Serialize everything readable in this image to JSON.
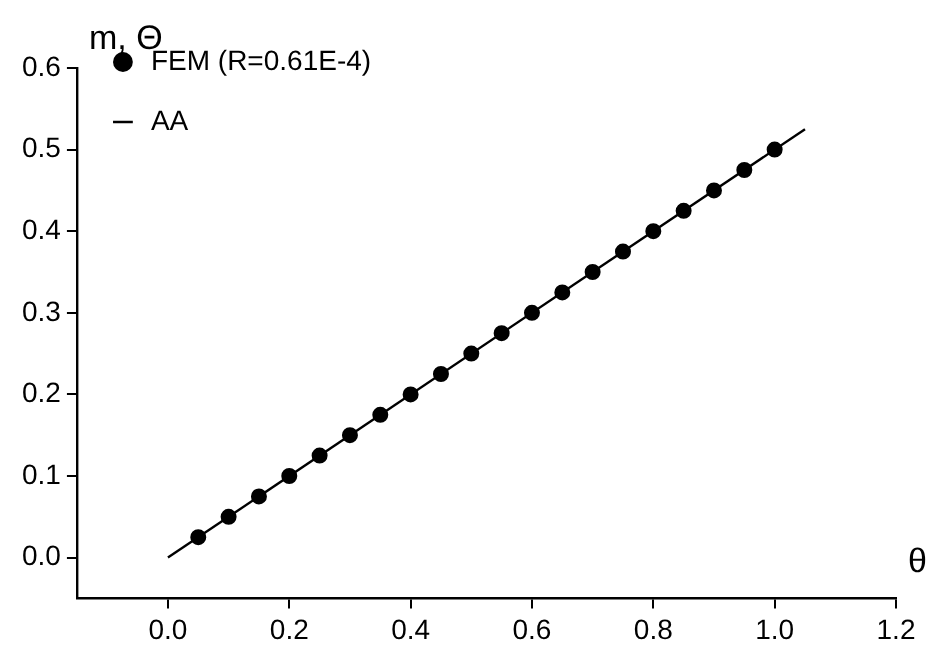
{
  "chart_data": {
    "type": "scatter",
    "xlabel": "θ",
    "ylabel": "m, Θ",
    "legend": "top left",
    "grid": false,
    "xlim": [
      -0.15,
      1.2
    ],
    "xticks": [
      {
        "value": 0,
        "label": "0.0"
      },
      0.2,
      0.4,
      0.6,
      0.8,
      {
        "value": 1,
        "label": "1.0"
      },
      1.2
    ],
    "ylim": [
      -0.05,
      0.6
    ],
    "yticks": [
      {
        "value": 0,
        "label": "0.0"
      },
      0.1,
      0.2,
      0.3,
      0.4,
      0.5,
      0.6
    ],
    "series": [
      {
        "name": "FEM (R=0.61E-4)",
        "type": "scatter",
        "marker": "circle",
        "color": "#000000",
        "x": [
          0.05,
          0.1,
          0.15,
          0.2,
          0.25,
          0.3,
          0.35,
          0.4,
          0.45,
          0.5,
          0.55,
          0.6,
          0.65,
          0.7,
          0.75,
          0.8,
          0.85,
          0.9,
          0.95,
          1.0
        ],
        "values": [
          0.025,
          0.05,
          0.075,
          0.1,
          0.125,
          0.15,
          0.175,
          0.2,
          0.225,
          0.25,
          0.275,
          0.3,
          0.325,
          0.35,
          0.375,
          0.4,
          0.425,
          0.45,
          0.475,
          0.5
        ]
      },
      {
        "name": "AA",
        "type": "line",
        "marker": "none",
        "line_style": "solid",
        "color": "#000000",
        "x": [
          0,
          1.05
        ],
        "values": [
          0,
          0.525
        ]
      }
    ]
  }
}
